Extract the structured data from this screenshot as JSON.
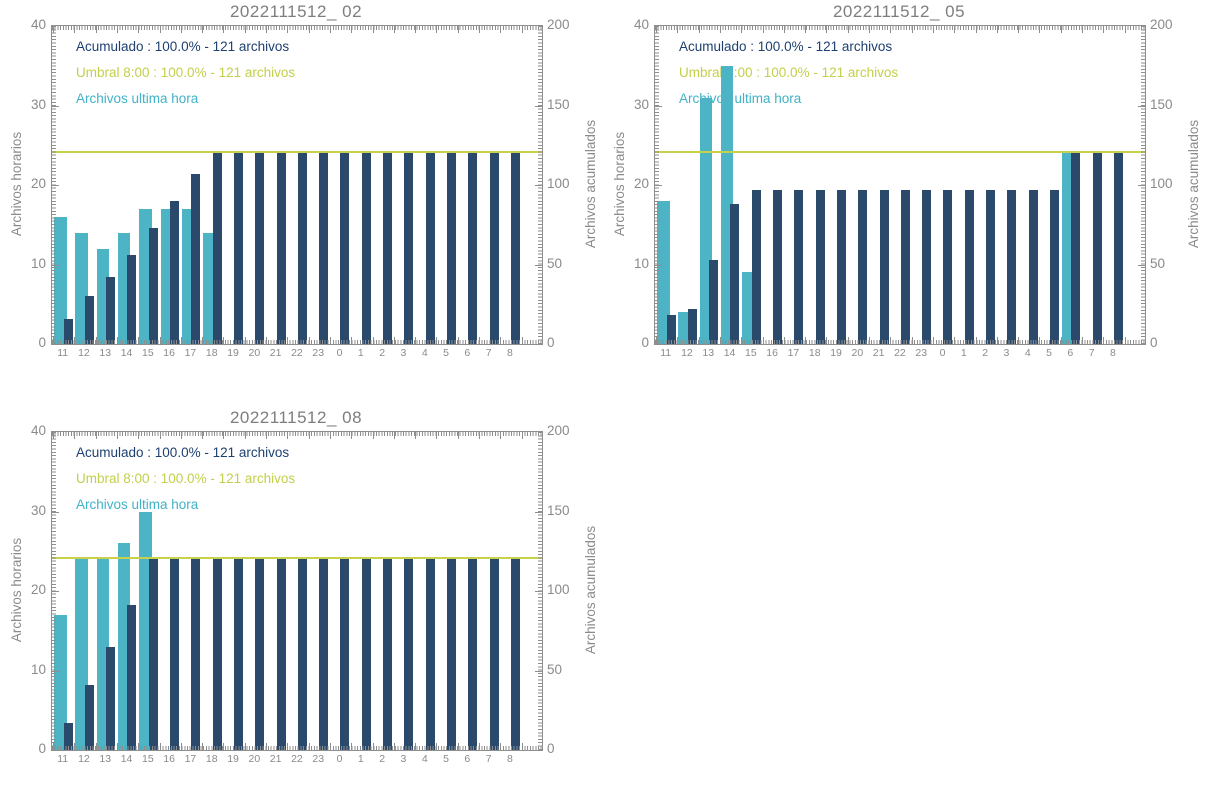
{
  "page": {
    "background": "#ffffff",
    "frame_color": "#8e8e8e",
    "text_color": "#8a8a8a",
    "title_color": "#7e7e7e"
  },
  "chart_data": [
    {
      "type": "bar",
      "title": "2022111512_ 02",
      "categories": [
        "11",
        "12",
        "13",
        "14",
        "15",
        "16",
        "17",
        "18",
        "19",
        "20",
        "21",
        "22",
        "23",
        "0",
        "1",
        "2",
        "3",
        "4",
        "5",
        "6",
        "7",
        "8"
      ],
      "series": [
        {
          "name": "Archivos ultima hora",
          "axis": "left",
          "color": "#4cb4c5",
          "values": [
            16,
            14,
            12,
            14,
            17,
            17,
            17,
            14,
            0,
            0,
            0,
            0,
            0,
            0,
            0,
            0,
            0,
            0,
            0,
            0,
            0,
            0
          ]
        },
        {
          "name": "Acumulado",
          "axis": "right",
          "color": "#2b4a6b",
          "values": [
            16,
            30,
            42,
            56,
            73,
            90,
            107,
            121,
            121,
            121,
            121,
            121,
            121,
            121,
            121,
            121,
            121,
            121,
            121,
            121,
            121,
            121
          ]
        }
      ],
      "threshold_line": {
        "label": "Umbral 8:00",
        "value": 121,
        "axis": "right",
        "color": "#c7d24a"
      },
      "legend": [
        {
          "id": "acumulado",
          "text": "Acumulado : 100.0% - 121 archivos",
          "color": "#1e4070"
        },
        {
          "id": "umbral",
          "text": "Umbral 8:00 : 100.0% - 121 archivos",
          "color": "#c3cf4a"
        },
        {
          "id": "ultima-hora",
          "text": "Archivos ultima hora",
          "color": "#41b2c7"
        }
      ],
      "ylabel_left": "Archivos horarios",
      "ylabel_right": "Archivos acumulados",
      "ylim_left": [
        0,
        40
      ],
      "ylim_right": [
        0,
        200
      ],
      "yticks_left": [
        "0",
        "10",
        "20",
        "30",
        "40"
      ],
      "yticks_right": [
        "0",
        "50",
        "100",
        "150",
        "200"
      ],
      "grid": false,
      "legend_position": "top-left-inside"
    },
    {
      "type": "bar",
      "title": "2022111512_ 05",
      "categories": [
        "11",
        "12",
        "13",
        "14",
        "15",
        "16",
        "17",
        "18",
        "19",
        "20",
        "21",
        "22",
        "23",
        "0",
        "1",
        "2",
        "3",
        "4",
        "5",
        "6",
        "7",
        "8"
      ],
      "series": [
        {
          "name": "Archivos ultima hora",
          "axis": "left",
          "color": "#4cb4c5",
          "values": [
            18,
            4,
            31,
            35,
            9,
            0,
            0,
            0,
            0,
            0,
            0,
            0,
            0,
            0,
            0,
            0,
            0,
            0,
            0,
            24,
            0,
            0
          ]
        },
        {
          "name": "Acumulado",
          "axis": "right",
          "color": "#2b4a6b",
          "values": [
            18,
            22,
            53,
            88,
            97,
            97,
            97,
            97,
            97,
            97,
            97,
            97,
            97,
            97,
            97,
            97,
            97,
            97,
            97,
            121,
            121,
            121
          ]
        }
      ],
      "threshold_line": {
        "label": "Umbral 8:00",
        "value": 121,
        "axis": "right",
        "color": "#c7d24a"
      },
      "legend": [
        {
          "id": "acumulado",
          "text": "Acumulado : 100.0% - 121 archivos",
          "color": "#1e4070"
        },
        {
          "id": "umbral",
          "text": "Umbral 8:00 : 100.0% - 121 archivos",
          "color": "#c3cf4a"
        },
        {
          "id": "ultima-hora",
          "text": "Archivos ultima hora",
          "color": "#41b2c7"
        }
      ],
      "ylabel_left": "Archivos horarios",
      "ylabel_right": "Archivos acumulados",
      "ylim_left": [
        0,
        40
      ],
      "ylim_right": [
        0,
        200
      ],
      "yticks_left": [
        "0",
        "10",
        "20",
        "30",
        "40"
      ],
      "yticks_right": [
        "0",
        "50",
        "100",
        "150",
        "200"
      ],
      "grid": false,
      "legend_position": "top-left-inside"
    },
    {
      "type": "bar",
      "title": "2022111512_ 08",
      "categories": [
        "11",
        "12",
        "13",
        "14",
        "15",
        "16",
        "17",
        "18",
        "19",
        "20",
        "21",
        "22",
        "23",
        "0",
        "1",
        "2",
        "3",
        "4",
        "5",
        "6",
        "7",
        "8"
      ],
      "series": [
        {
          "name": "Archivos ultima hora",
          "axis": "left",
          "color": "#4cb4c5",
          "values": [
            17,
            24,
            24,
            26,
            30,
            0,
            0,
            0,
            0,
            0,
            0,
            0,
            0,
            0,
            0,
            0,
            0,
            0,
            0,
            0,
            0,
            0
          ]
        },
        {
          "name": "Acumulado",
          "axis": "right",
          "color": "#2b4a6b",
          "values": [
            17,
            41,
            65,
            91,
            121,
            121,
            121,
            121,
            121,
            121,
            121,
            121,
            121,
            121,
            121,
            121,
            121,
            121,
            121,
            121,
            121,
            121
          ]
        }
      ],
      "threshold_line": {
        "label": "Umbral 8:00",
        "value": 121,
        "axis": "right",
        "color": "#c7d24a"
      },
      "legend": [
        {
          "id": "acumulado",
          "text": "Acumulado : 100.0% - 121 archivos",
          "color": "#1e4070"
        },
        {
          "id": "umbral",
          "text": "Umbral 8:00 : 100.0% - 121 archivos",
          "color": "#c3cf4a"
        },
        {
          "id": "ultima-hora",
          "text": "Archivos ultima hora",
          "color": "#41b2c7"
        }
      ],
      "ylabel_left": "Archivos horarios",
      "ylabel_right": "Archivos acumulados",
      "ylim_left": [
        0,
        40
      ],
      "ylim_right": [
        0,
        200
      ],
      "yticks_left": [
        "0",
        "10",
        "20",
        "30",
        "40"
      ],
      "yticks_right": [
        "0",
        "50",
        "100",
        "150",
        "200"
      ],
      "grid": false,
      "legend_position": "top-left-inside"
    }
  ]
}
